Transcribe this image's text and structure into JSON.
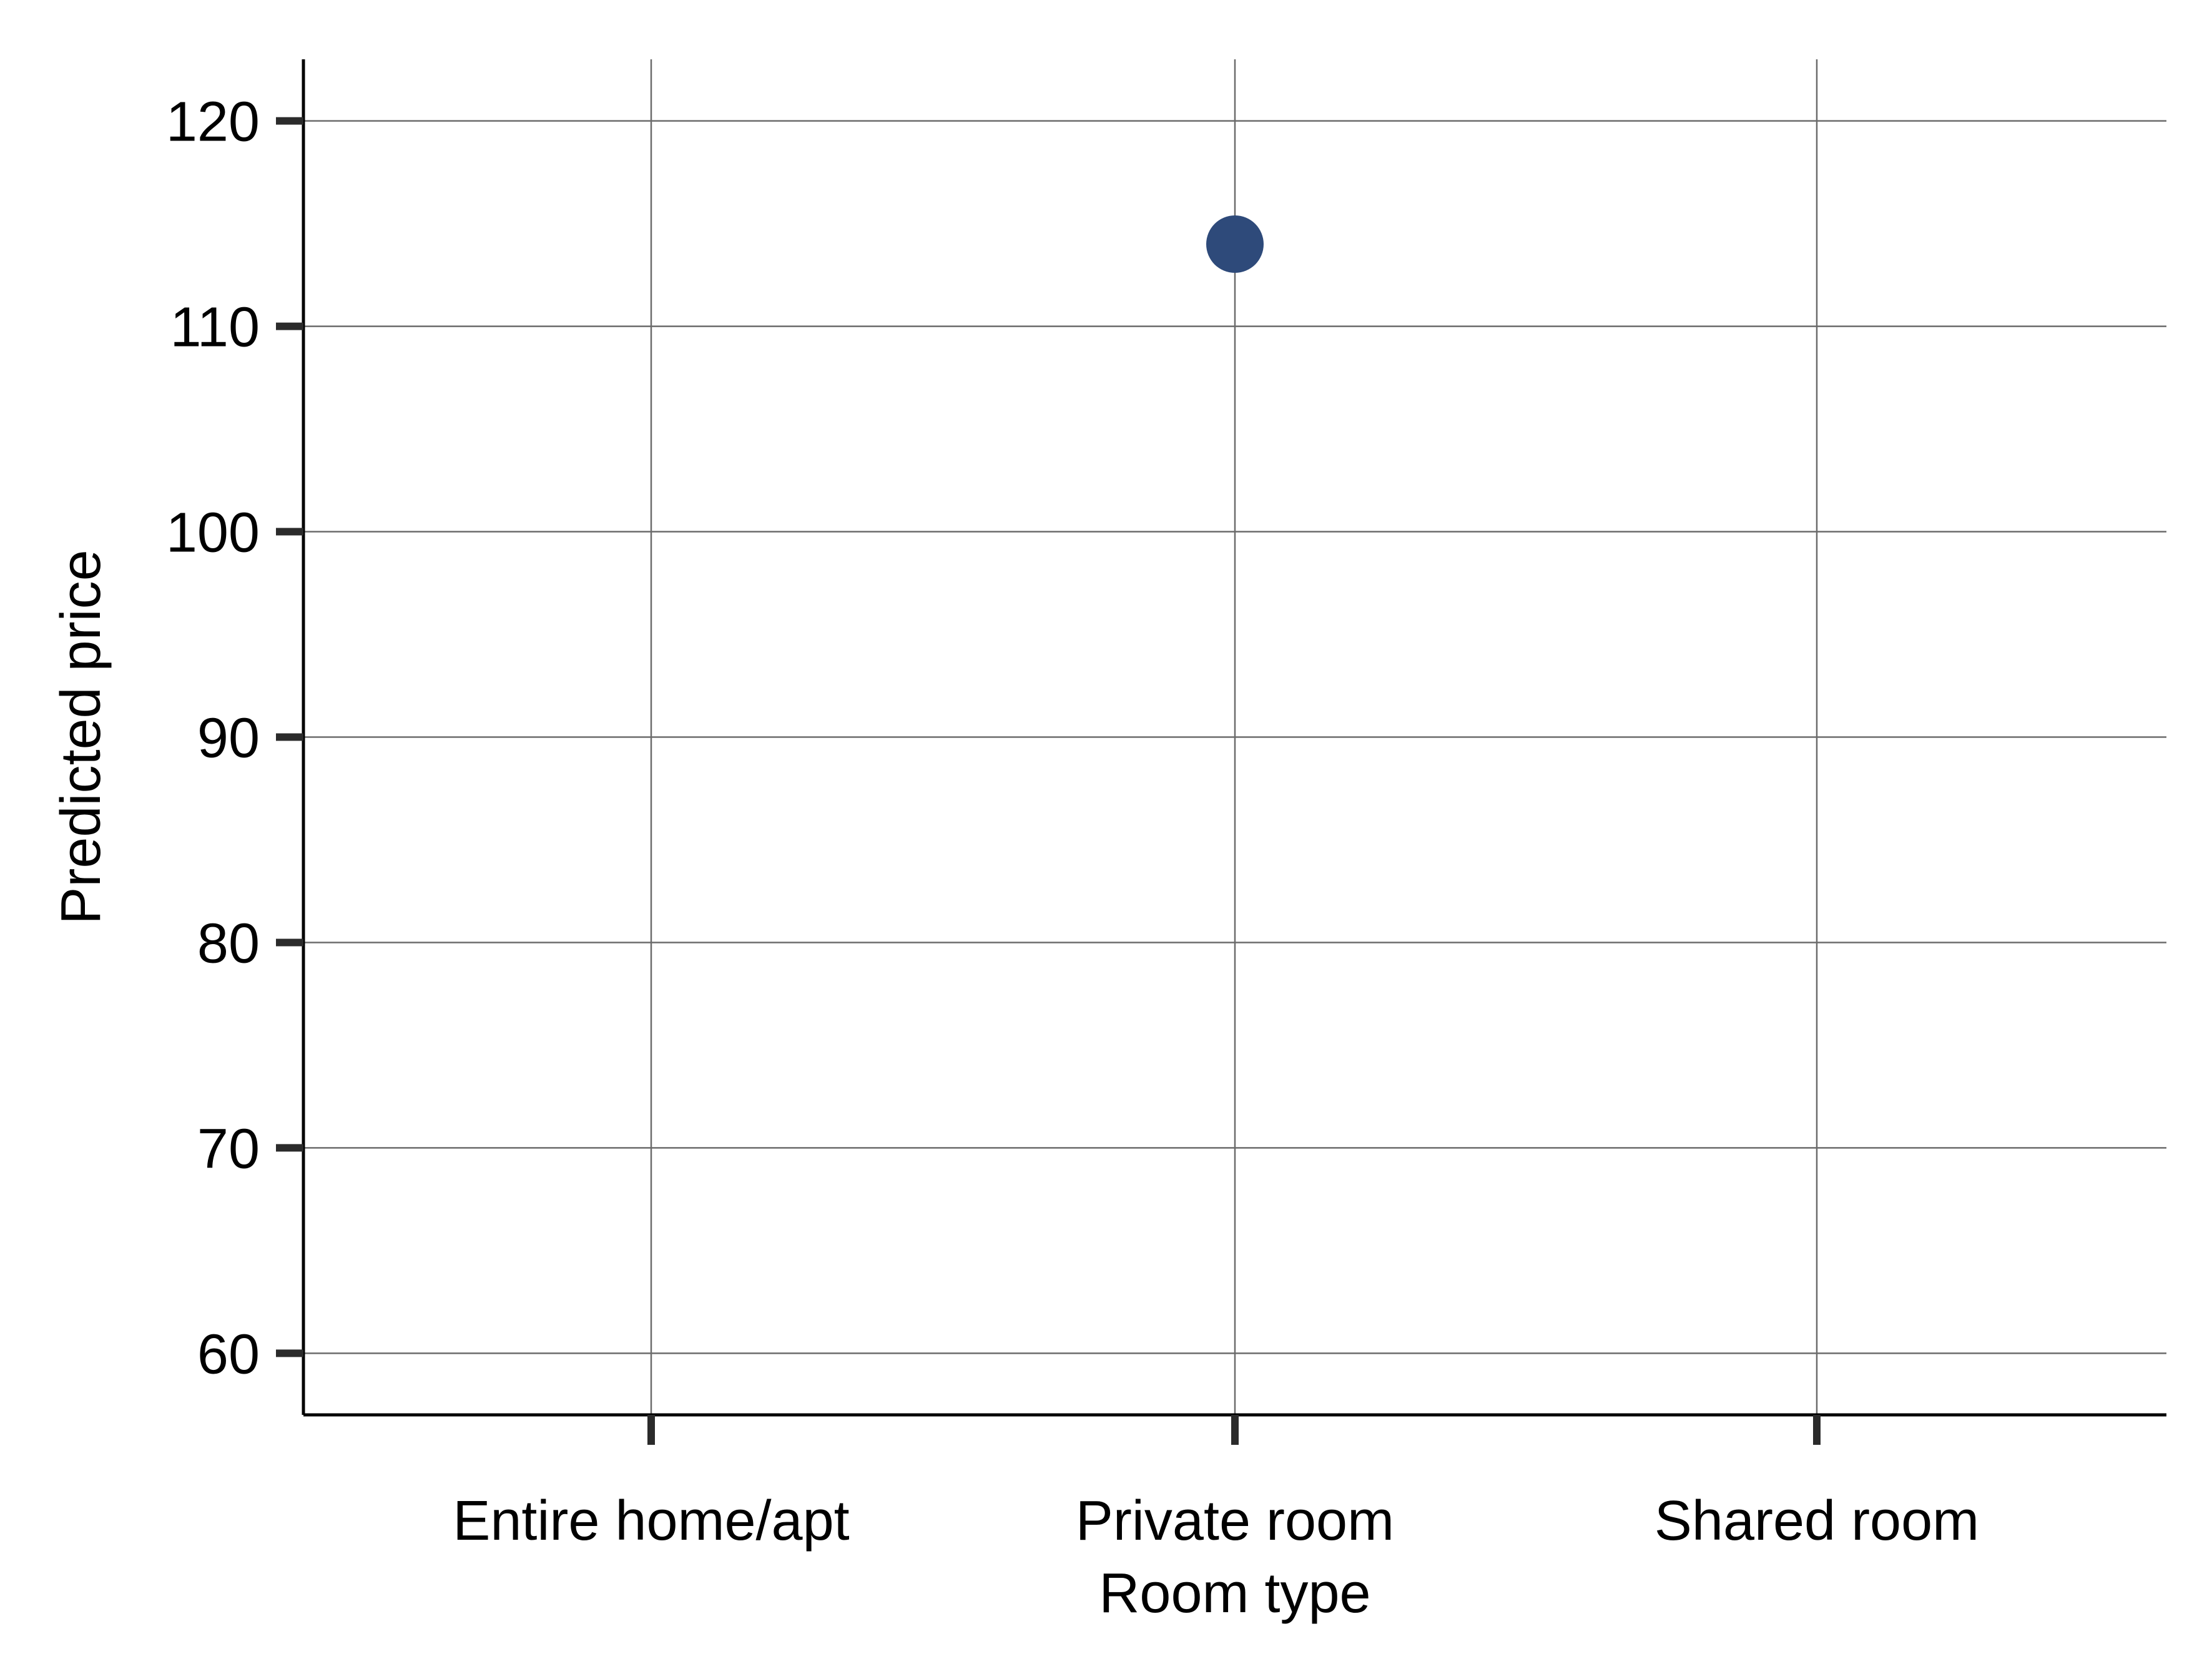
{
  "chart_data": {
    "type": "scatter",
    "categories": [
      "Entire home/apt",
      "Private room",
      "Shared room"
    ],
    "points": [
      {
        "category": "Private room",
        "value": 114
      }
    ],
    "xlabel": "Room type",
    "ylabel": "Predicted price",
    "yticks": [
      60,
      70,
      80,
      90,
      100,
      110,
      120
    ],
    "ylim": [
      57,
      123
    ],
    "grid": true,
    "point_color": "#2e4a7a"
  }
}
